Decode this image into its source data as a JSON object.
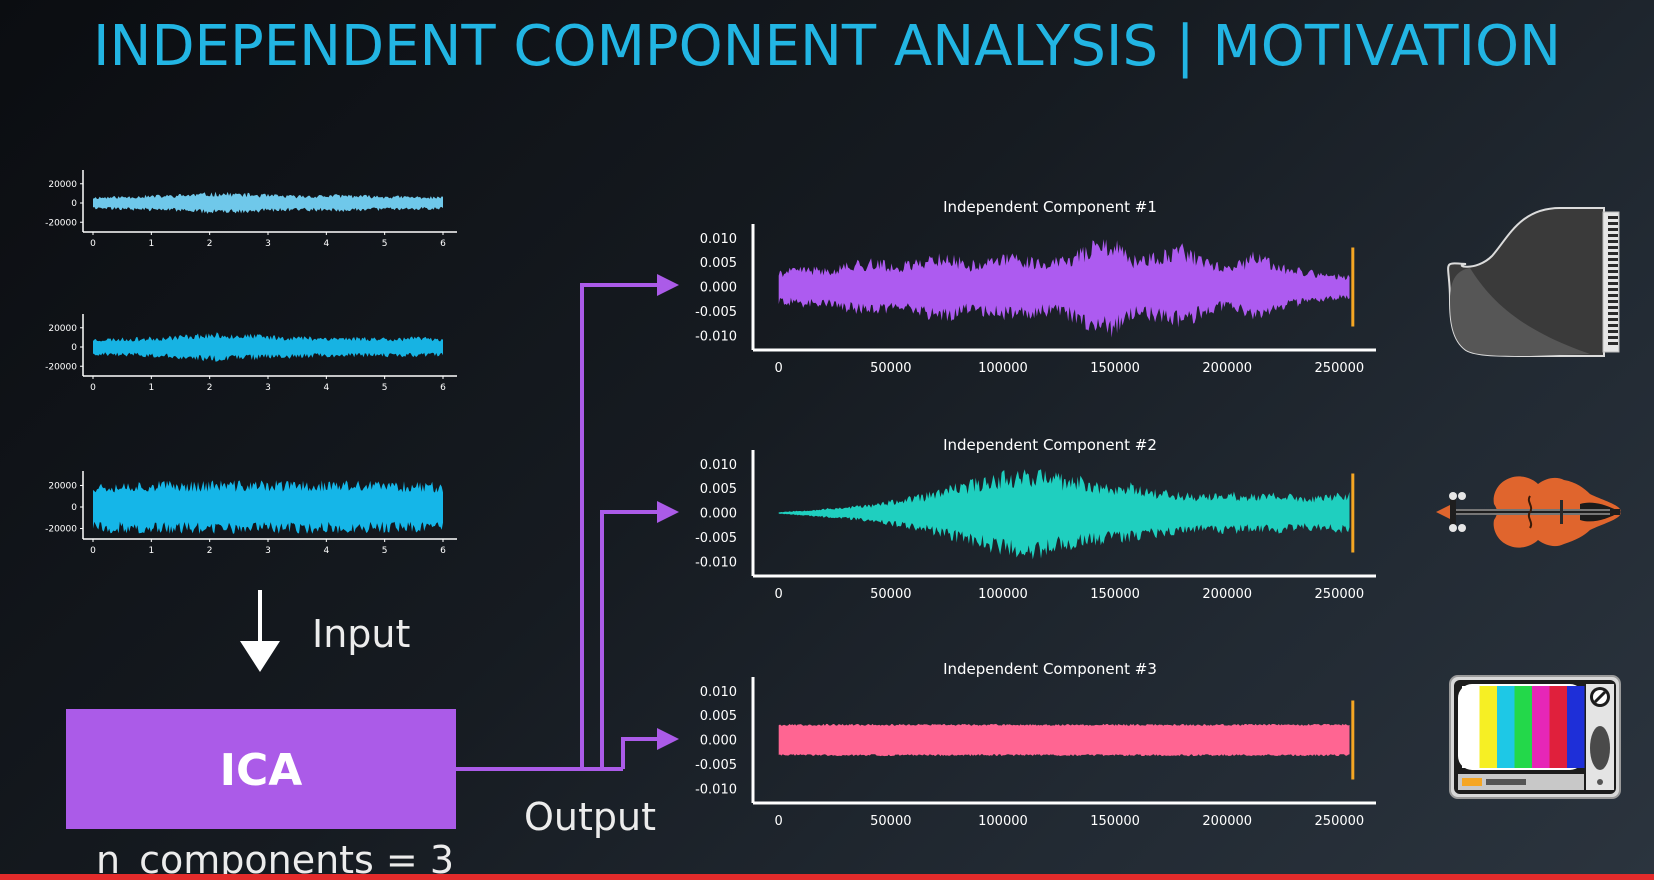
{
  "slide": {
    "title": "INDEPENDENT COMPONENT ANALYSIS | MOTIVATION",
    "input_label": "Input",
    "ica_label": "ICA",
    "output_label": "Output",
    "n_components_label": "n_components = 3"
  },
  "colors": {
    "title": "#22b5e3",
    "mix1": "#6fc8ea",
    "mix2": "#17b3e3",
    "mix3": "#15b6e8",
    "ica_box": "#ab5be8",
    "arrow": "#ab5be8",
    "ic1": "#ad5bf0",
    "ic2": "#1fcfbf",
    "ic3": "#ff6592",
    "marker": "#f5a623"
  },
  "icons": [
    "grand-piano-icon",
    "violin-icon",
    "television-icon"
  ],
  "chart_data": [
    {
      "type": "line",
      "role": "input-mix-1",
      "xticks": [
        "0",
        "1",
        "2",
        "3",
        "4",
        "5",
        "6"
      ],
      "yticks": [
        "20000",
        "0",
        "-20000"
      ],
      "xlim": [
        0,
        6
      ],
      "ylim": [
        -26000,
        26000
      ],
      "envelope": [
        7000,
        7500,
        8500,
        9000,
        10500,
        12000,
        11000,
        9500,
        8500,
        9000,
        9500,
        8500,
        8000,
        7500,
        7000
      ]
    },
    {
      "type": "line",
      "role": "input-mix-2",
      "xticks": [
        "0",
        "1",
        "2",
        "3",
        "4",
        "5",
        "6"
      ],
      "yticks": [
        "20000",
        "0",
        "-20000"
      ],
      "xlim": [
        0,
        6
      ],
      "ylim": [
        -26000,
        26000
      ],
      "envelope": [
        9500,
        10000,
        10500,
        12000,
        14500,
        15500,
        14500,
        13000,
        12000,
        11500,
        11000,
        11000,
        10500,
        11000,
        10500
      ]
    },
    {
      "type": "line",
      "role": "input-mix-3",
      "xticks": [
        "0",
        "1",
        "2",
        "3",
        "4",
        "5",
        "6"
      ],
      "yticks": [
        "20000",
        "0",
        "-20000"
      ],
      "xlim": [
        0,
        6
      ],
      "ylim": [
        -26000,
        26000
      ],
      "envelope": [
        24000,
        24500,
        25000,
        25000,
        25000,
        25500,
        25000,
        25000,
        25000,
        25000,
        25000,
        24500,
        24500,
        24500,
        24000
      ]
    },
    {
      "type": "line",
      "role": "independent-component-1",
      "title": "Independent Component #1",
      "xticks": [
        "0",
        "50000",
        "100000",
        "150000",
        "200000",
        "250000"
      ],
      "yticks": [
        "0.010",
        "0.005",
        "0.000",
        "-0.005",
        "-0.010"
      ],
      "xlim": [
        -7000,
        265000
      ],
      "ylim": [
        -0.0125,
        0.0125
      ],
      "envelope": [
        0.0035,
        0.0045,
        0.004,
        0.0055,
        0.006,
        0.005,
        0.0065,
        0.0075,
        0.0055,
        0.0065,
        0.0075,
        0.006,
        0.0065,
        0.0095,
        0.0105,
        0.0065,
        0.0075,
        0.009,
        0.006,
        0.0045,
        0.0075,
        0.005,
        0.004,
        0.003,
        0.0025
      ],
      "marker_x": 256000
    },
    {
      "type": "line",
      "role": "independent-component-2",
      "title": "Independent Component #2",
      "xticks": [
        "0",
        "50000",
        "100000",
        "150000",
        "200000",
        "250000"
      ],
      "yticks": [
        "0.010",
        "0.005",
        "0.000",
        "-0.005",
        "-0.010"
      ],
      "xlim": [
        -7000,
        265000
      ],
      "ylim": [
        -0.0125,
        0.0125
      ],
      "envelope": [
        0.0002,
        0.0006,
        0.001,
        0.0015,
        0.002,
        0.003,
        0.004,
        0.0055,
        0.007,
        0.0085,
        0.0095,
        0.0095,
        0.008,
        0.0075,
        0.006,
        0.0065,
        0.005,
        0.0045,
        0.004,
        0.0045,
        0.004,
        0.0045,
        0.0035,
        0.004,
        0.0045
      ],
      "marker_x": 256000
    },
    {
      "type": "line",
      "role": "independent-component-3",
      "title": "Independent Component #3",
      "xticks": [
        "0",
        "50000",
        "100000",
        "150000",
        "200000",
        "250000"
      ],
      "yticks": [
        "0.010",
        "0.005",
        "0.000",
        "-0.005",
        "-0.010"
      ],
      "xlim": [
        -7000,
        265000
      ],
      "ylim": [
        -0.0125,
        0.0125
      ],
      "envelope": [
        0.0033,
        0.0033,
        0.0033,
        0.0033,
        0.0033,
        0.0033,
        0.0033,
        0.0033,
        0.0033,
        0.0033,
        0.0033,
        0.0033,
        0.0033,
        0.0033,
        0.0033,
        0.0033,
        0.0033,
        0.0033,
        0.0033,
        0.0033
      ],
      "marker_x": 256000
    }
  ]
}
